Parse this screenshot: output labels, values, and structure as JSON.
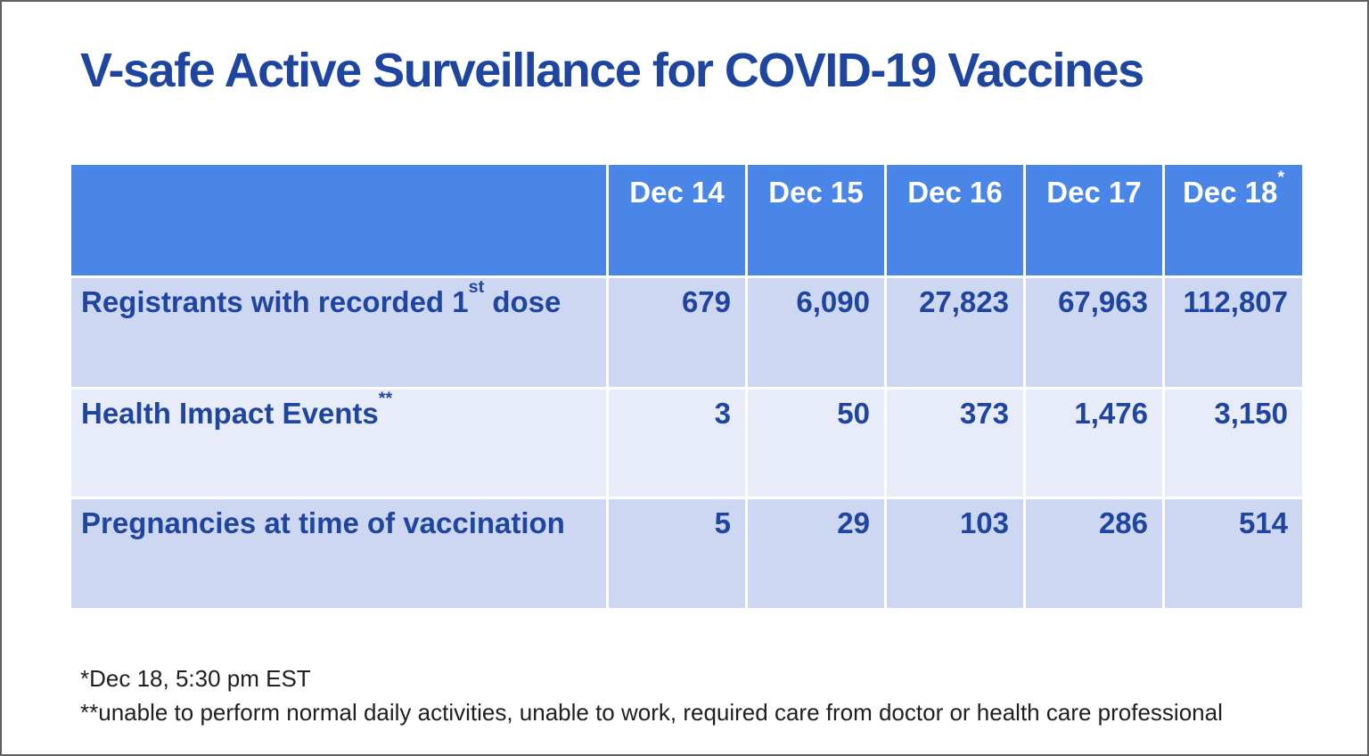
{
  "title": "V-safe Active Surveillance for COVID-19 Vaccines",
  "table": {
    "corner": "",
    "columns": [
      {
        "label": "Dec 14",
        "sup": ""
      },
      {
        "label": "Dec 15",
        "sup": ""
      },
      {
        "label": "Dec 16",
        "sup": ""
      },
      {
        "label": "Dec 17",
        "sup": ""
      },
      {
        "label": "Dec 18",
        "sup": "*"
      }
    ],
    "rows": [
      {
        "label": "Registrants with recorded 1",
        "sup": "st",
        "label_after": " dose",
        "values": [
          "679",
          "6,090",
          "27,823",
          "67,963",
          "112,807"
        ]
      },
      {
        "label": "Health Impact Events",
        "sup": "**",
        "label_after": "",
        "values": [
          "3",
          "50",
          "373",
          "1,476",
          "3,150"
        ]
      },
      {
        "label": "Pregnancies at time of vaccination",
        "sup": "",
        "label_after": "",
        "values": [
          "5",
          "29",
          "103",
          "286",
          "514"
        ]
      }
    ]
  },
  "footnotes": [
    "*Dec 18, 5:30 pm EST",
    "**unable to perform normal daily activities, unable to work, required care from doctor or health care professional"
  ],
  "chart_data": {
    "type": "table",
    "title": "V-safe Active Surveillance for COVID-19 Vaccines",
    "columns": [
      "",
      "Dec 14",
      "Dec 15",
      "Dec 16",
      "Dec 17",
      "Dec 18*"
    ],
    "rows": [
      [
        "Registrants with recorded 1st dose",
        679,
        6090,
        27823,
        67963,
        112807
      ],
      [
        "Health Impact Events**",
        3,
        50,
        373,
        1476,
        3150
      ],
      [
        "Pregnancies at time of vaccination",
        5,
        29,
        103,
        286,
        514
      ]
    ]
  },
  "colors": {
    "header_bg": "#4A86E8",
    "row_shade_dark": "#CDD7F1",
    "row_shade_light": "#E8ECF9",
    "title_text": "#1E45A0",
    "table_text": "#1E45A0",
    "header_text": "#FFFFFF",
    "footnote_text": "#1F1F1F",
    "slide_border": "#616161"
  }
}
